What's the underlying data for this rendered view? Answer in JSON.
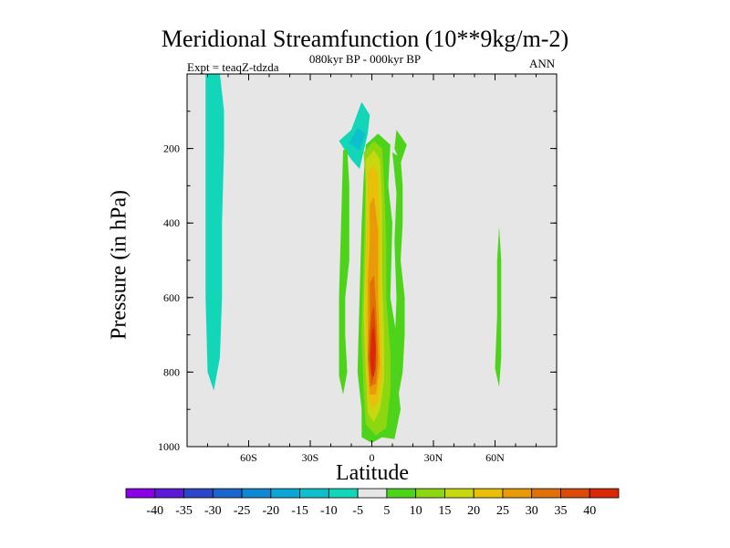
{
  "chart_data": {
    "type": "heatmap",
    "title": "Meridional Streamfunction (10**9kg/m-2)",
    "subtitle": "080kyr BP - 000kyr BP",
    "left_label": "Expt = teaqZ-tdzda",
    "right_label": "ANN",
    "xlabel": "Latitude",
    "ylabel": "Pressure (in hPa)",
    "xlim": [
      -90,
      90
    ],
    "ylim": [
      0,
      1000
    ],
    "x_ticks": [
      {
        "value": -60,
        "label": "60S"
      },
      {
        "value": -30,
        "label": "30S"
      },
      {
        "value": 0,
        "label": "0"
      },
      {
        "value": 30,
        "label": "30N"
      },
      {
        "value": 60,
        "label": "60N"
      }
    ],
    "y_ticks": [
      {
        "value": 200,
        "label": "200"
      },
      {
        "value": 400,
        "label": "400"
      },
      {
        "value": 600,
        "label": "600"
      },
      {
        "value": 800,
        "label": "800"
      },
      {
        "value": 1000,
        "label": "1000"
      }
    ],
    "background_color": "#e6e6e6",
    "colorbar": {
      "levels": [
        "-40",
        "-35",
        "-30",
        "-25",
        "-20",
        "-15",
        "-10",
        "-5",
        "5",
        "10",
        "15",
        "20",
        "25",
        "30",
        "35",
        "40"
      ],
      "colors": [
        "#8a00e6",
        "#5a1ad6",
        "#2d45c9",
        "#1a66cc",
        "#0f88d4",
        "#0aa6d6",
        "#0fc0cc",
        "#12d6b8",
        "#e6e6e6",
        "#4dd41a",
        "#8cd612",
        "#c8d80f",
        "#e8c00a",
        "#e89a08",
        "#e07008",
        "#dc4a08",
        "#d82808"
      ]
    },
    "regions": [
      {
        "name": "sh-highlat-negative",
        "color": "#12d6b8",
        "points": [
          [
            -81,
            0
          ],
          [
            -74,
            0
          ],
          [
            -72,
            100
          ],
          [
            -72,
            200
          ],
          [
            -73,
            400
          ],
          [
            -73,
            600
          ],
          [
            -74,
            760
          ],
          [
            -77,
            850
          ],
          [
            -80,
            800
          ],
          [
            -81,
            600
          ],
          [
            -81,
            400
          ],
          [
            -81,
            200
          ]
        ]
      },
      {
        "name": "upper-tropics-negative",
        "color": "#12d6b8",
        "points": [
          [
            -5,
            75
          ],
          [
            -1,
            110
          ],
          [
            -2,
            160
          ],
          [
            -6,
            255
          ],
          [
            -10,
            230
          ],
          [
            -16,
            180
          ],
          [
            -10,
            150
          ]
        ]
      },
      {
        "name": "upper-tropics-negative-core",
        "color": "#0fc0cc",
        "points": [
          [
            -7,
            145
          ],
          [
            -3,
            160
          ],
          [
            -6,
            205
          ],
          [
            -11,
            185
          ]
        ]
      },
      {
        "name": "upper-small-positive",
        "color": "#4dd41a",
        "points": [
          [
            12,
            150
          ],
          [
            17,
            190
          ],
          [
            14,
            240
          ],
          [
            11,
            200
          ]
        ]
      },
      {
        "name": "sh-subtropical-band-positive",
        "color": "#4dd41a",
        "points": [
          [
            -14,
            205
          ],
          [
            -12,
            200
          ],
          [
            -11,
            300
          ],
          [
            -11,
            500
          ],
          [
            -13,
            600
          ],
          [
            -13,
            700
          ],
          [
            -12,
            800
          ],
          [
            -14,
            860
          ],
          [
            -16,
            810
          ],
          [
            -16,
            600
          ],
          [
            -15,
            400
          ]
        ]
      },
      {
        "name": "equatorial-cell-5",
        "color": "#4dd41a",
        "points": [
          [
            -3,
            190
          ],
          [
            3,
            160
          ],
          [
            9,
            190
          ],
          [
            8,
            300
          ],
          [
            10,
            400
          ],
          [
            9,
            600
          ],
          [
            12,
            700
          ],
          [
            12,
            800
          ],
          [
            14,
            900
          ],
          [
            11,
            980
          ],
          [
            5,
            975
          ],
          [
            0,
            990
          ],
          [
            -5,
            975
          ],
          [
            -5,
            900
          ],
          [
            -7,
            800
          ],
          [
            -6,
            600
          ],
          [
            -5,
            400
          ],
          [
            -4,
            280
          ]
        ]
      },
      {
        "name": "nh-subtropical-band-positive",
        "color": "#4dd41a",
        "points": [
          [
            10,
            210
          ],
          [
            14,
            225
          ],
          [
            15,
            300
          ],
          [
            15,
            400
          ],
          [
            14,
            500
          ],
          [
            16,
            600
          ],
          [
            16,
            700
          ],
          [
            15,
            800
          ],
          [
            13,
            860
          ],
          [
            11,
            750
          ],
          [
            12,
            600
          ],
          [
            11,
            450
          ],
          [
            12,
            320
          ]
        ]
      },
      {
        "name": "nh-highlat-positive",
        "color": "#4dd41a",
        "points": [
          [
            62,
            410
          ],
          [
            63,
            500
          ],
          [
            63,
            650
          ],
          [
            63,
            760
          ],
          [
            62,
            840
          ],
          [
            60,
            790
          ],
          [
            61,
            650
          ],
          [
            61,
            500
          ]
        ]
      },
      {
        "name": "equatorial-cell-10",
        "color": "#8cd612",
        "points": [
          [
            -4,
            210
          ],
          [
            1,
            180
          ],
          [
            5,
            200
          ],
          [
            6,
            300
          ],
          [
            7,
            450
          ],
          [
            7,
            600
          ],
          [
            9,
            750
          ],
          [
            9,
            850
          ],
          [
            7,
            950
          ],
          [
            2,
            970
          ],
          [
            -3,
            940
          ],
          [
            -4,
            850
          ],
          [
            -5,
            700
          ],
          [
            -4,
            500
          ],
          [
            -3,
            300
          ]
        ]
      },
      {
        "name": "equatorial-cell-15",
        "color": "#c8d80f",
        "points": [
          [
            -3,
            230
          ],
          [
            1,
            205
          ],
          [
            4,
            230
          ],
          [
            5,
            350
          ],
          [
            5,
            550
          ],
          [
            6,
            700
          ],
          [
            6,
            820
          ],
          [
            4,
            900
          ],
          [
            1,
            935
          ],
          [
            -2,
            910
          ],
          [
            -3,
            800
          ],
          [
            -4,
            650
          ],
          [
            -3,
            450
          ],
          [
            -3,
            320
          ]
        ]
      },
      {
        "name": "equatorial-cell-20",
        "color": "#e8c00a",
        "points": [
          [
            -2,
            260
          ],
          [
            1,
            245
          ],
          [
            3,
            270
          ],
          [
            4,
            450
          ],
          [
            4,
            650
          ],
          [
            5,
            800
          ],
          [
            3,
            880
          ],
          [
            0,
            900
          ],
          [
            -2,
            860
          ],
          [
            -3,
            720
          ],
          [
            -3,
            520
          ],
          [
            -2,
            350
          ]
        ]
      },
      {
        "name": "equatorial-cell-25",
        "color": "#e89a08",
        "points": [
          [
            -1,
            350
          ],
          [
            1,
            330
          ],
          [
            3,
            420
          ],
          [
            3,
            600
          ],
          [
            4,
            780
          ],
          [
            2,
            860
          ],
          [
            -1,
            860
          ],
          [
            -2,
            760
          ],
          [
            -2,
            560
          ],
          [
            -1,
            450
          ]
        ]
      },
      {
        "name": "equatorial-cell-30",
        "color": "#e07008",
        "points": [
          [
            -1,
            560
          ],
          [
            1,
            540
          ],
          [
            2,
            620
          ],
          [
            3,
            760
          ],
          [
            2,
            830
          ],
          [
            -1,
            840
          ],
          [
            -2,
            760
          ],
          [
            -1,
            650
          ]
        ]
      },
      {
        "name": "equatorial-cell-35",
        "color": "#dc4a08",
        "points": [
          [
            0,
            640
          ],
          [
            1,
            620
          ],
          [
            2,
            700
          ],
          [
            2,
            790
          ],
          [
            0,
            830
          ],
          [
            -1,
            780
          ],
          [
            -1,
            700
          ]
        ]
      },
      {
        "name": "equatorial-cell-40",
        "color": "#d82808",
        "points": [
          [
            0,
            690
          ],
          [
            1,
            680
          ],
          [
            2,
            740
          ],
          [
            1,
            810
          ],
          [
            0,
            810
          ],
          [
            -1,
            760
          ]
        ]
      }
    ]
  }
}
